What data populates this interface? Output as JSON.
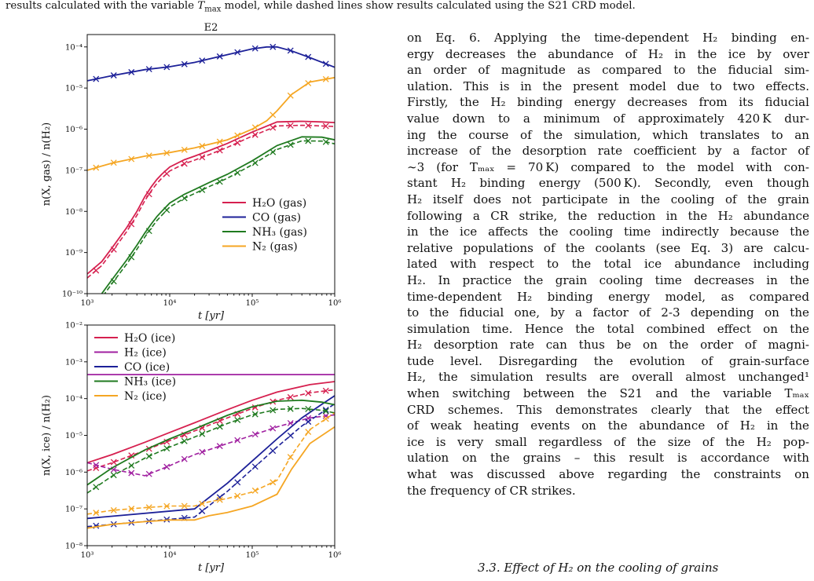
{
  "caption": {
    "pre": "results calculated with the variable ",
    "tmax": "T",
    "tmax_sub": "max",
    "post": " model, while dashed lines show results calculated using the S21 CRD model."
  },
  "chart_data": [
    {
      "type": "line",
      "title": "E2",
      "xlabel": "t [yr]",
      "ylabel": "n(X, gas) / n(H2)",
      "xscale": "log",
      "yscale": "log",
      "xlim": [
        1000,
        1000000
      ],
      "ylim": [
        1e-10,
        0.0002
      ],
      "xtick_labels": [
        "10^3",
        "10^4",
        "10^5",
        "10^6"
      ],
      "ytick_labels": [
        "10^-10",
        "10^-9",
        "10^-8",
        "10^-7",
        "10^-6",
        "10^-5",
        "10^-4"
      ],
      "legend_position": "lower-right",
      "line_styles": {
        "solid": "variable Tmax model",
        "dashed": "S21 CRD model",
        "marker": "x"
      },
      "series": [
        {
          "name": "H2O (gas)",
          "color": "#d6204f",
          "x": [
            1000,
            1500,
            2000,
            3000,
            4000,
            5000,
            6000,
            7000,
            8000,
            10000,
            15000,
            20000,
            30000,
            50000,
            100000,
            200000,
            400000,
            700000,
            1000000
          ],
          "y": [
            3e-10,
            6e-10,
            1.3e-09,
            4e-09,
            1e-08,
            2.3e-08,
            4e-08,
            6e-08,
            8e-08,
            1.2e-07,
            1.8e-07,
            2.2e-07,
            3e-07,
            4.5e-07,
            8.5e-07,
            1.5e-06,
            1.55e-06,
            1.5e-06,
            1.45e-06
          ]
        },
        {
          "name": "CO (gas)",
          "color": "#1c2098",
          "x": [
            1000,
            2000,
            5000,
            10000,
            20000,
            50000,
            100000,
            150000,
            200000,
            300000,
            500000,
            1000000
          ],
          "y": [
            1.5e-05,
            2e-05,
            2.8e-05,
            3.3e-05,
            4.2e-05,
            6.5e-05,
            9e-05,
            0.0001,
            0.0001,
            8e-05,
            5.5e-05,
            3.2e-05
          ]
        },
        {
          "name": "NH3 (gas)",
          "color": "#1f7a1f",
          "x": [
            1000,
            1500,
            2000,
            3000,
            4000,
            5000,
            6000,
            7000,
            8000,
            10000,
            15000,
            20000,
            30000,
            50000,
            100000,
            200000,
            400000,
            700000,
            1000000
          ],
          "y": [
            5e-11,
            1e-10,
            2.2e-10,
            6.5e-10,
            1.5e-09,
            3e-09,
            5e-09,
            7.5e-09,
            1e-08,
            1.6e-08,
            2.6e-08,
            3.4e-08,
            5e-08,
            8e-08,
            1.7e-07,
            4e-07,
            6.5e-07,
            6.4e-07,
            5.5e-07
          ]
        },
        {
          "name": "N2 (gas)",
          "color": "#f5a623",
          "x": [
            1000,
            2000,
            5000,
            10000,
            20000,
            50000,
            100000,
            150000,
            200000,
            300000,
            500000,
            1000000
          ],
          "y": [
            1e-07,
            1.5e-07,
            2.2e-07,
            2.7e-07,
            3.5e-07,
            5.5e-07,
            1e-06,
            1.6e-06,
            2.8e-06,
            7e-06,
            1.4e-05,
            1.8e-05
          ]
        }
      ]
    },
    {
      "type": "line",
      "xlabel": "t [yr]",
      "ylabel": "n(X, ice) / n(H2)",
      "xscale": "log",
      "yscale": "log",
      "xlim": [
        1000,
        1000000
      ],
      "ylim": [
        1e-08,
        0.01
      ],
      "xtick_labels": [
        "10^3",
        "10^4",
        "10^5",
        "10^6"
      ],
      "ytick_labels": [
        "10^-8",
        "10^-7",
        "10^-6",
        "10^-5",
        "10^-4",
        "10^-3",
        "10^-2"
      ],
      "legend_position": "upper-left",
      "line_styles": {
        "solid": "variable Tmax model",
        "dashed": "S21 CRD model",
        "marker": "x"
      },
      "series": [
        {
          "name": "H2O (ice)",
          "color": "#d6204f",
          "x": [
            1000,
            2000,
            5000,
            10000,
            20000,
            50000,
            100000,
            200000,
            500000,
            1000000
          ],
          "y": [
            1.8e-06,
            3e-06,
            6.5e-06,
            1.2e-05,
            2.2e-05,
            5e-05,
            9e-05,
            0.00015,
            0.00024,
            0.00029
          ]
        },
        {
          "name": "H2 (ice)",
          "color": "#a020a0",
          "x": [
            1000,
            1000000
          ],
          "y": [
            0.00045,
            0.00045
          ]
        },
        {
          "name": "CO (ice)",
          "color": "#1c2098",
          "x": [
            1000,
            20000,
            50000,
            100000,
            200000,
            400000,
            700000,
            1000000
          ],
          "y": [
            5.5e-08,
            1e-07,
            5e-07,
            2e-06,
            8e-06,
            3e-05,
            7e-05,
            0.00012
          ]
        },
        {
          "name": "NH3 (ice)",
          "color": "#1f7a1f",
          "x": [
            1000,
            2000,
            5000,
            10000,
            20000,
            50000,
            100000,
            200000,
            400000,
            700000,
            1000000
          ],
          "y": [
            4.5e-07,
            1.3e-06,
            4e-06,
            8e-06,
            1.5e-05,
            3.5e-05,
            6e-05,
            8.5e-05,
            9e-05,
            8e-05,
            6.8e-05
          ]
        },
        {
          "name": "N2 (ice)",
          "color": "#f5a623",
          "x": [
            1000,
            2000,
            5000,
            10000,
            20000,
            30000,
            50000,
            100000,
            200000,
            300000,
            500000,
            1000000
          ],
          "y": [
            3e-08,
            3.8e-08,
            4.5e-08,
            5e-08,
            5e-08,
            6.5e-08,
            8e-08,
            1.2e-07,
            2.5e-07,
            1.2e-06,
            6e-06,
            1.7e-05
          ]
        }
      ]
    }
  ],
  "body_lines": [
    "on Eq. 6. Applying the time-dependent H₂ binding en-",
    "ergy decreases the abundance of H₂ in the ice by over",
    "an order of magnitude as compared to the fiducial sim-",
    "ulation. This is in the present model due to two effects.",
    "Firstly, the H₂ binding energy decreases from its fiducial",
    "value down to a minimum of approximately 420 K dur-",
    "ing the course of the simulation, which translates to an",
    "increase of the desorption rate coefficient by a factor of",
    "∼3 (for Tₘₐₓ = 70 K) compared to the model with con-",
    "stant H₂ binding energy (500 K). Secondly, even though",
    "H₂ itself does not participate in the cooling of the grain",
    "following a CR strike, the reduction in the H₂ abundance",
    "in the ice affects the cooling time indirectly because the",
    "relative populations of the coolants (see Eq. 3) are calcu-",
    "lated with respect to the total ice abundance including",
    "H₂. In practice the grain cooling time decreases in the",
    "time-dependent H₂ binding energy model, as compared",
    "to the fiducial one, by a factor of 2-3 depending on the",
    "simulation time. Hence the total combined effect on the",
    "H₂ desorption rate can thus be on the order of magni-",
    "tude level. Disregarding the evolution of grain-surface",
    "H₂, the simulation results are overall almost unchanged¹",
    "when switching between the S21 and the variable Tₘₐₓ",
    "CRD schemes. This demonstrates clearly that the effect",
    "of weak heating events on the abundance of H₂ in the",
    "ice is very small regardless of the size of the H₂ pop-",
    "ulation on the grains – this result is accordance with",
    "what was discussed above regarding the constraints on",
    "the frequency of CR strikes."
  ],
  "subsection_heading": "3.3.  Effect of H₂ on the cooling of grains"
}
